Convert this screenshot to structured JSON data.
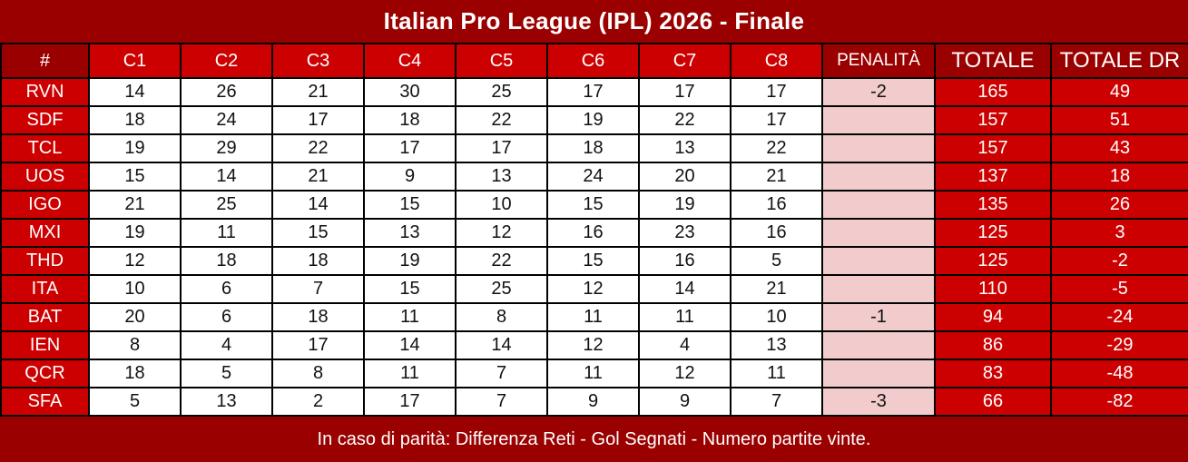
{
  "title": "Italian Pro League (IPL) 2026 - Finale",
  "footer_note": "In caso di parità: Differenza Reti - Gol Segnati - Numero partite vinte.",
  "colors": {
    "page_background": "#9a0000",
    "accent_red": "#cc0000",
    "penalty_pink": "#f2cccc",
    "border_black": "#000000",
    "text_white": "#ffffff",
    "text_black": "#111111"
  },
  "table": {
    "headers": [
      "#",
      "C1",
      "C2",
      "C3",
      "C4",
      "C5",
      "C6",
      "C7",
      "C8",
      "PENALITÀ",
      "TOTALE",
      "TOTALE DR"
    ],
    "rows": [
      {
        "team": "RVN",
        "scores": [
          14,
          26,
          21,
          30,
          25,
          17,
          17,
          17
        ],
        "penalty": "-2",
        "total": 165,
        "dr": 49
      },
      {
        "team": "SDF",
        "scores": [
          18,
          24,
          17,
          18,
          22,
          19,
          22,
          17
        ],
        "penalty": "",
        "total": 157,
        "dr": 51
      },
      {
        "team": "TCL",
        "scores": [
          19,
          29,
          22,
          17,
          17,
          18,
          13,
          22
        ],
        "penalty": "",
        "total": 157,
        "dr": 43
      },
      {
        "team": "UOS",
        "scores": [
          15,
          14,
          21,
          9,
          13,
          24,
          20,
          21
        ],
        "penalty": "",
        "total": 137,
        "dr": 18
      },
      {
        "team": "IGO",
        "scores": [
          21,
          25,
          14,
          15,
          10,
          15,
          19,
          16
        ],
        "penalty": "",
        "total": 135,
        "dr": 26
      },
      {
        "team": "MXI",
        "scores": [
          19,
          11,
          15,
          13,
          12,
          16,
          23,
          16
        ],
        "penalty": "",
        "total": 125,
        "dr": 3
      },
      {
        "team": "THD",
        "scores": [
          12,
          18,
          18,
          19,
          22,
          15,
          16,
          5
        ],
        "penalty": "",
        "total": 125,
        "dr": -2
      },
      {
        "team": "ITA",
        "scores": [
          10,
          6,
          7,
          15,
          25,
          12,
          14,
          21
        ],
        "penalty": "",
        "total": 110,
        "dr": -5
      },
      {
        "team": "BAT",
        "scores": [
          20,
          6,
          18,
          11,
          8,
          11,
          11,
          10
        ],
        "penalty": "-1",
        "total": 94,
        "dr": -24
      },
      {
        "team": "IEN",
        "scores": [
          8,
          4,
          17,
          14,
          14,
          12,
          4,
          13
        ],
        "penalty": "",
        "total": 86,
        "dr": -29
      },
      {
        "team": "QCR",
        "scores": [
          18,
          5,
          8,
          11,
          7,
          11,
          12,
          11
        ],
        "penalty": "",
        "total": 83,
        "dr": -48
      },
      {
        "team": "SFA",
        "scores": [
          5,
          13,
          2,
          17,
          7,
          9,
          9,
          7
        ],
        "penalty": "-3",
        "total": 66,
        "dr": -82
      }
    ]
  },
  "chart_data": {
    "type": "table",
    "title": "Italian Pro League (IPL) 2026 - Finale",
    "columns": [
      "#",
      "C1",
      "C2",
      "C3",
      "C4",
      "C5",
      "C6",
      "C7",
      "C8",
      "PENALITÀ",
      "TOTALE",
      "TOTALE DR"
    ],
    "rows": [
      [
        "RVN",
        14,
        26,
        21,
        30,
        25,
        17,
        17,
        17,
        -2,
        165,
        49
      ],
      [
        "SDF",
        18,
        24,
        17,
        18,
        22,
        19,
        22,
        17,
        null,
        157,
        51
      ],
      [
        "TCL",
        19,
        29,
        22,
        17,
        17,
        18,
        13,
        22,
        null,
        157,
        43
      ],
      [
        "UOS",
        15,
        14,
        21,
        9,
        13,
        24,
        20,
        21,
        null,
        137,
        18
      ],
      [
        "IGO",
        21,
        25,
        14,
        15,
        10,
        15,
        19,
        16,
        null,
        135,
        26
      ],
      [
        "MXI",
        19,
        11,
        15,
        13,
        12,
        16,
        23,
        16,
        null,
        125,
        3
      ],
      [
        "THD",
        12,
        18,
        18,
        19,
        22,
        15,
        16,
        5,
        null,
        125,
        -2
      ],
      [
        "ITA",
        10,
        6,
        7,
        15,
        25,
        12,
        14,
        21,
        null,
        110,
        -5
      ],
      [
        "BAT",
        20,
        6,
        18,
        11,
        8,
        11,
        11,
        10,
        -1,
        94,
        -24
      ],
      [
        "IEN",
        8,
        4,
        17,
        14,
        14,
        12,
        4,
        13,
        null,
        86,
        -29
      ],
      [
        "QCR",
        18,
        5,
        8,
        11,
        7,
        11,
        12,
        11,
        null,
        83,
        -48
      ],
      [
        "SFA",
        5,
        13,
        2,
        17,
        7,
        9,
        9,
        7,
        -3,
        66,
        -82
      ]
    ],
    "notes": "In caso di parità: Differenza Reti - Gol Segnati - Numero partite vinte."
  }
}
